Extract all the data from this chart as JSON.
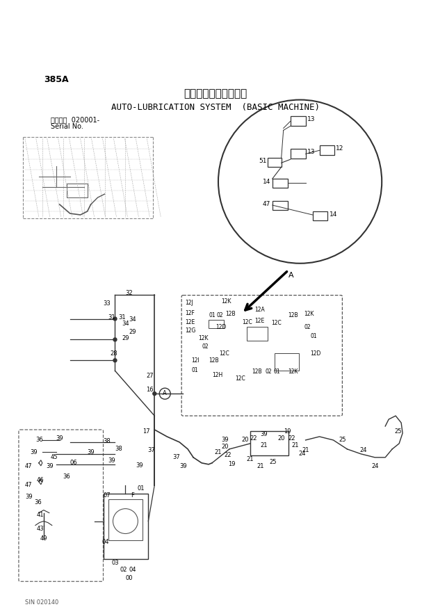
{
  "title_jp": "自動給脂装置（本体）",
  "title_en": "AUTO-LUBRICATION SYSTEM  (BASIC MACHINE)",
  "part_number": "385A",
  "serial_label": "適用号機  020001-",
  "serial_no": "Serial No.",
  "bg_color": "#ffffff",
  "text_color": "#000000",
  "line_color": "#333333",
  "figsize": [
    6.2,
    8.73
  ],
  "dpi": 100
}
